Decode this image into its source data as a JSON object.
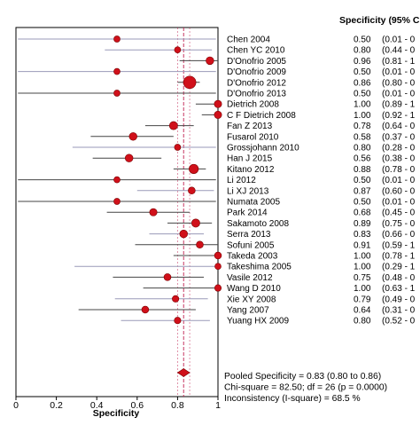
{
  "chart_data": {
    "type": "forest",
    "column_header": "Specificity (95% C",
    "xlabel": "Specificity",
    "xlim": [
      0,
      1
    ],
    "x_ticks": [
      "0",
      "0.2",
      "0.4",
      "0.6",
      "0.8",
      "1"
    ],
    "pooled_line": 0.83,
    "pooled_ci": [
      0.8,
      0.86
    ],
    "colors": {
      "marker": "#d0101a",
      "marker_edge": "#7a0000",
      "ci_dark": "#444444",
      "ci_light": "#9a9ab8",
      "ref_line": "#c02050"
    },
    "studies": [
      {
        "name": "Chen 2004",
        "value": "0.50",
        "ci": "(0.01 - 0",
        "est": 0.5,
        "lo": 0.01,
        "hi": 0.99,
        "weight": 0.6,
        "ci_color": "light"
      },
      {
        "name": "Chen YC 2010",
        "value": "0.80",
        "ci": "(0.44 - 0",
        "est": 0.8,
        "lo": 0.44,
        "hi": 0.97,
        "weight": 0.6,
        "ci_color": "light"
      },
      {
        "name": "D'Onofrio 2005",
        "value": "0.96",
        "ci": "(0.81 - 1",
        "est": 0.96,
        "lo": 0.81,
        "hi": 1.0,
        "weight": 1.0,
        "ci_color": "dark"
      },
      {
        "name": "D'Onofrio 2009",
        "value": "0.50",
        "ci": "(0.01 - 0",
        "est": 0.5,
        "lo": 0.01,
        "hi": 0.99,
        "weight": 0.6,
        "ci_color": "light"
      },
      {
        "name": "D'Onofrio 2012",
        "value": "0.86",
        "ci": "(0.80 - 0",
        "est": 0.86,
        "lo": 0.8,
        "hi": 0.91,
        "weight": 2.2,
        "ci_color": "dark"
      },
      {
        "name": "D'Onofrio 2013",
        "value": "0.50",
        "ci": "(0.01 - 0",
        "est": 0.5,
        "lo": 0.01,
        "hi": 0.99,
        "weight": 0.6,
        "ci_color": "dark"
      },
      {
        "name": "Dietrich 2008",
        "value": "1.00",
        "ci": "(0.89 - 1",
        "est": 1.0,
        "lo": 0.89,
        "hi": 1.0,
        "weight": 0.9,
        "ci_color": "dark"
      },
      {
        "name": "C F Dietrich 2008",
        "value": "1.00",
        "ci": "(0.92 - 1",
        "est": 1.0,
        "lo": 0.92,
        "hi": 1.0,
        "weight": 0.9,
        "ci_color": "dark"
      },
      {
        "name": "Fan Z 2013",
        "value": "0.78",
        "ci": "(0.64 - 0",
        "est": 0.78,
        "lo": 0.64,
        "hi": 0.88,
        "weight": 1.1,
        "ci_color": "dark"
      },
      {
        "name": "Fusarol 2010",
        "value": "0.58",
        "ci": "(0.37 - 0",
        "est": 0.58,
        "lo": 0.37,
        "hi": 0.78,
        "weight": 1.0,
        "ci_color": "dark"
      },
      {
        "name": "Grossjohann 2010",
        "value": "0.80",
        "ci": "(0.28 - 0",
        "est": 0.8,
        "lo": 0.28,
        "hi": 0.99,
        "weight": 0.6,
        "ci_color": "light"
      },
      {
        "name": "Han J 2015",
        "value": "0.56",
        "ci": "(0.38 - 0",
        "est": 0.56,
        "lo": 0.38,
        "hi": 0.72,
        "weight": 1.0,
        "ci_color": "dark"
      },
      {
        "name": "Kitano 2012",
        "value": "0.88",
        "ci": "(0.78 - 0",
        "est": 0.88,
        "lo": 0.78,
        "hi": 0.94,
        "weight": 1.4,
        "ci_color": "dark"
      },
      {
        "name": "Li 2012",
        "value": "0.50",
        "ci": "(0.01 - 0",
        "est": 0.5,
        "lo": 0.01,
        "hi": 0.99,
        "weight": 0.6,
        "ci_color": "dark"
      },
      {
        "name": "Li XJ 2013",
        "value": "0.87",
        "ci": "(0.60 - 0",
        "est": 0.87,
        "lo": 0.6,
        "hi": 0.98,
        "weight": 0.8,
        "ci_color": "light"
      },
      {
        "name": "Numata 2005",
        "value": "0.50",
        "ci": "(0.01 - 0",
        "est": 0.5,
        "lo": 0.01,
        "hi": 0.99,
        "weight": 0.6,
        "ci_color": "dark"
      },
      {
        "name": "Park 2014",
        "value": "0.68",
        "ci": "(0.45 - 0",
        "est": 0.68,
        "lo": 0.45,
        "hi": 0.86,
        "weight": 0.9,
        "ci_color": "dark"
      },
      {
        "name": "Sakamoto 2008",
        "value": "0.89",
        "ci": "(0.75 - 0",
        "est": 0.89,
        "lo": 0.75,
        "hi": 0.97,
        "weight": 1.1,
        "ci_color": "dark"
      },
      {
        "name": "Serra 2013",
        "value": "0.83",
        "ci": "(0.66 - 0",
        "est": 0.83,
        "lo": 0.66,
        "hi": 0.93,
        "weight": 1.0,
        "ci_color": "light"
      },
      {
        "name": "Sofuni 2005",
        "value": "0.91",
        "ci": "(0.59 - 1",
        "est": 0.91,
        "lo": 0.59,
        "hi": 1.0,
        "weight": 0.8,
        "ci_color": "dark"
      },
      {
        "name": "Takeda 2003",
        "value": "1.00",
        "ci": "(0.78 - 1",
        "est": 1.0,
        "lo": 0.78,
        "hi": 1.0,
        "weight": 0.8,
        "ci_color": "dark"
      },
      {
        "name": "Takeshima 2005",
        "value": "1.00",
        "ci": "(0.29 - 1",
        "est": 1.0,
        "lo": 0.29,
        "hi": 1.0,
        "weight": 0.6,
        "ci_color": "light"
      },
      {
        "name": "Vasile 2012",
        "value": "0.75",
        "ci": "(0.48 - 0",
        "est": 0.75,
        "lo": 0.48,
        "hi": 0.93,
        "weight": 0.8,
        "ci_color": "dark"
      },
      {
        "name": "Wang D 2010",
        "value": "1.00",
        "ci": "(0.63 - 1",
        "est": 1.0,
        "lo": 0.63,
        "hi": 1.0,
        "weight": 0.7,
        "ci_color": "dark"
      },
      {
        "name": "Xie XY 2008",
        "value": "0.79",
        "ci": "(0.49 - 0",
        "est": 0.79,
        "lo": 0.49,
        "hi": 0.95,
        "weight": 0.7,
        "ci_color": "light"
      },
      {
        "name": "Yang 2007",
        "value": "0.64",
        "ci": "(0.31 - 0",
        "est": 0.64,
        "lo": 0.31,
        "hi": 0.89,
        "weight": 0.8,
        "ci_color": "dark"
      },
      {
        "name": "Yuang HX 2009",
        "value": "0.80",
        "ci": "(0.52 - 0",
        "est": 0.8,
        "lo": 0.52,
        "hi": 0.96,
        "weight": 0.7,
        "ci_color": "light"
      }
    ],
    "summary_lines": [
      "Pooled Specificity = 0.83 (0.80 to 0.86)",
      "Chi-square = 82.50; df = 26 (p = 0.0000)",
      "Inconsistency (I-square) = 68.5 %"
    ]
  }
}
